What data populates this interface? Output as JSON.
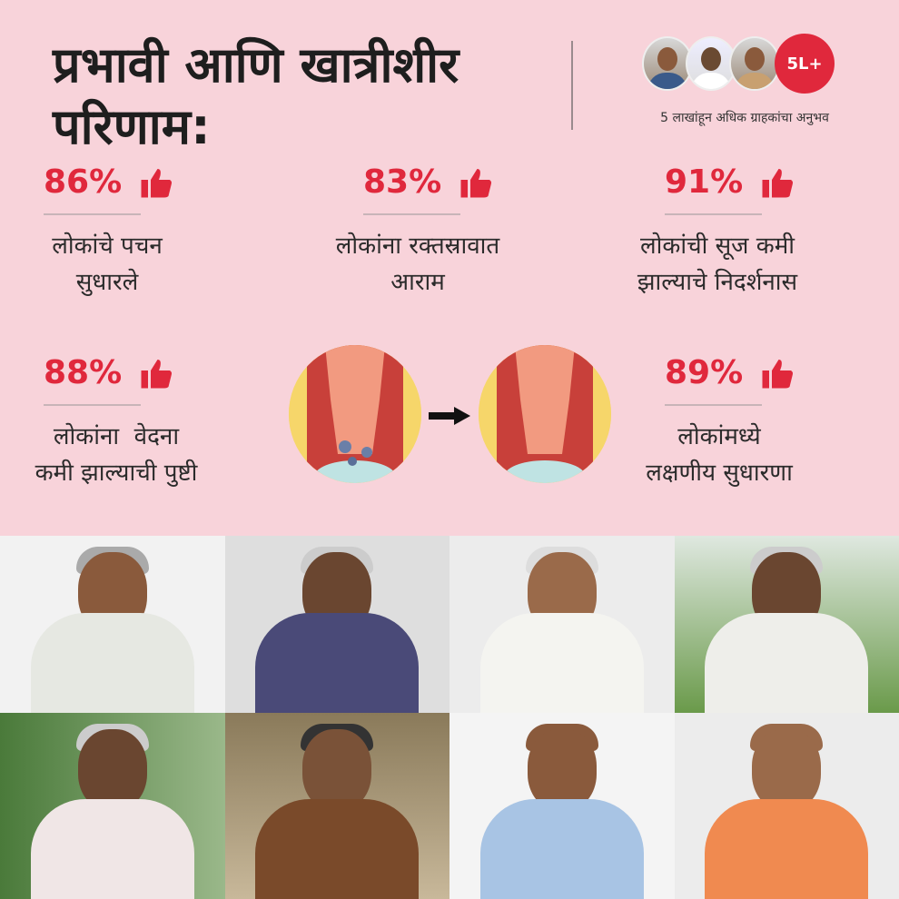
{
  "title": "प्रभावी आणि खात्रीशीर परिणाम:",
  "social_proof": {
    "badge": "5L+",
    "caption": "5 लाखांहून अधिक ग्राहकांचा अनुभव"
  },
  "colors": {
    "accent": "#e0283c",
    "background": "#f8d3da"
  },
  "stats": [
    {
      "percent": "86%",
      "label_line1": "लोकांचे पचन",
      "label_line2": "सुधारले",
      "icon": "thumbs-up-icon"
    },
    {
      "percent": "83%",
      "label_line1": "लोकांना रक्तस्रावात",
      "label_line2": "आराम",
      "icon": "thumbs-up-icon"
    },
    {
      "percent": "91%",
      "label_line1": "लोकांची सूज कमी",
      "label_line2": "झाल्याचे निदर्शनास",
      "icon": "thumbs-up-icon"
    },
    {
      "percent": "88%",
      "label_line1": "लोकांना  वेदना",
      "label_line2": "कमी झाल्याची पुष्टी",
      "icon": "thumbs-up-icon"
    },
    {
      "percent": "89%",
      "label_line1": "लोकांमध्ये",
      "label_line2": "लक्षणीय सुधारणा",
      "icon": "thumbs-up-icon"
    }
  ]
}
